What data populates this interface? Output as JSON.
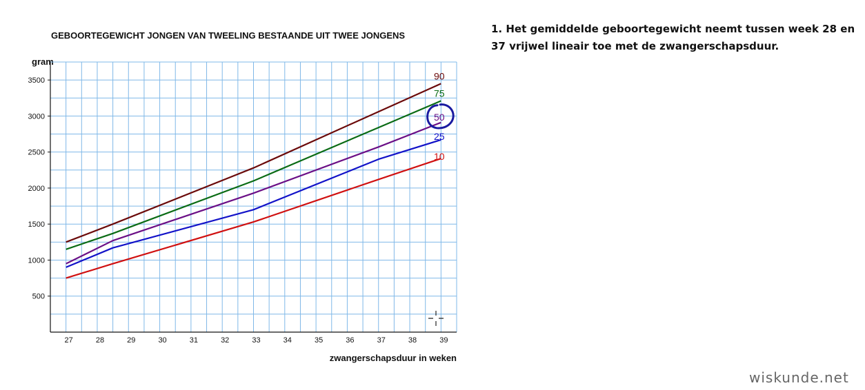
{
  "chart_data": {
    "type": "line",
    "title": "GEBOORTEGEWICHT JONGEN VAN TWEELING BESTAANDE UIT TWEE JONGENS",
    "ylabel": "gram",
    "xlabel": "zwangerschapsduur in weken",
    "x": [
      27,
      28.5,
      33,
      37,
      39
    ],
    "xticks": [
      27,
      28,
      29,
      30,
      31,
      32,
      33,
      34,
      35,
      36,
      37,
      38,
      39
    ],
    "yticks": [
      500,
      1000,
      1500,
      2000,
      2500,
      3000,
      3500
    ],
    "xlim": [
      26.5,
      39.5
    ],
    "ylim": [
      0,
      3750
    ],
    "grid": true,
    "series": [
      {
        "name": "90",
        "color": "#6b0a0a",
        "values": [
          1250,
          1500,
          2280,
          3060,
          3450
        ]
      },
      {
        "name": "75",
        "color": "#0a6b14",
        "values": [
          1150,
          1370,
          2100,
          2840,
          3210
        ]
      },
      {
        "name": "50",
        "color": "#6b0f86",
        "values": [
          950,
          1270,
          1930,
          2570,
          2910
        ]
      },
      {
        "name": "25",
        "color": "#1212c8",
        "values": [
          900,
          1170,
          1700,
          2400,
          2670
        ]
      },
      {
        "name": "10",
        "color": "#d01010",
        "values": [
          750,
          950,
          1530,
          2120,
          2410
        ]
      }
    ],
    "highlighted_series": "50"
  },
  "note": {
    "text": "1. Het gemiddelde geboortegewicht neemt tussen week 28 en 37 vrijwel lineair toe met de zwangerschapsduur."
  },
  "brand": "wiskunde.net",
  "colors": {
    "grid": "#7fb8e8",
    "axis": "#111111",
    "highlight_circle": "#1a1aa0"
  }
}
